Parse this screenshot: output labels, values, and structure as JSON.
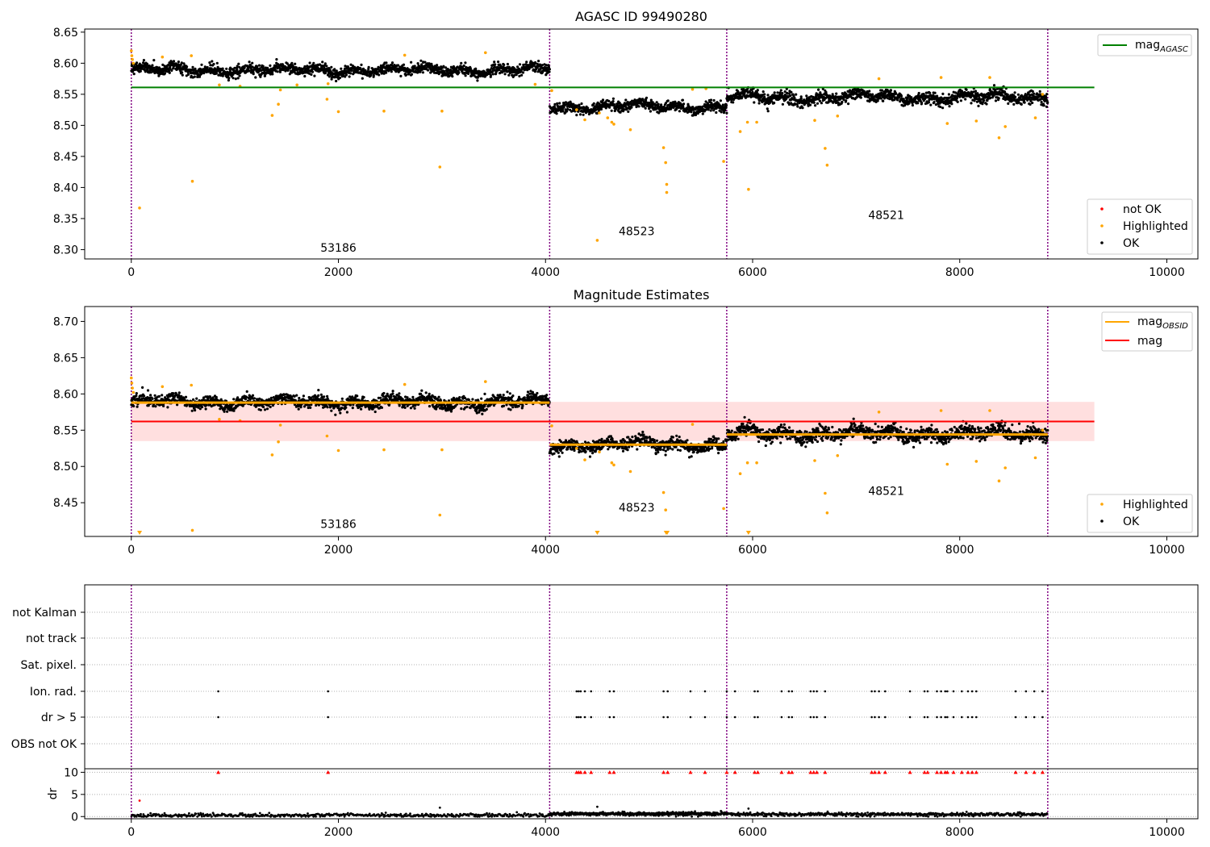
{
  "chart_data": [
    {
      "id": "agasc",
      "type": "scatter",
      "title": "AGASC ID 99490280",
      "xlim": [
        -450,
        10300
      ],
      "ylim": [
        8.285,
        8.655
      ],
      "xticks": [
        0,
        2000,
        4000,
        6000,
        8000,
        10000
      ],
      "xtick_labels": [
        "0",
        "2000",
        "4000",
        "6000",
        "8000",
        "10000"
      ],
      "yticks": [
        8.3,
        8.35,
        8.4,
        8.45,
        8.5,
        8.55,
        8.6,
        8.65
      ],
      "ytick_labels": [
        "8.30",
        "8.35",
        "8.40",
        "8.45",
        "8.50",
        "8.55",
        "8.60",
        "8.65"
      ],
      "obsid_boundaries": [
        0,
        4040,
        5750,
        8850
      ],
      "obsid_labels": [
        {
          "x": 2000,
          "y": 8.297,
          "text": "53186"
        },
        {
          "x": 4880,
          "y": 8.323,
          "text": "48523"
        },
        {
          "x": 7290,
          "y": 8.349,
          "text": "48521"
        }
      ],
      "hlines": [
        {
          "y": 8.561,
          "x_range": [
            0,
            9300
          ],
          "color": "#008000",
          "name": "mag_AGASC"
        }
      ],
      "segments": [
        {
          "x_range": [
            0,
            4040
          ],
          "level": 8.589,
          "spread": 0.006
        },
        {
          "x_range": [
            4040,
            5750
          ],
          "level": 8.53,
          "spread": 0.006
        },
        {
          "x_range": [
            5750,
            8850
          ],
          "level": 8.545,
          "spread": 0.007
        }
      ],
      "ok_points_per_segment": [
        1500,
        650,
        1150
      ],
      "highlighted_points": [
        [
          0,
          8.62
        ],
        [
          5,
          8.612
        ],
        [
          10,
          8.606
        ],
        [
          20,
          8.6
        ],
        [
          80,
          8.367
        ],
        [
          300,
          8.61
        ],
        [
          580,
          8.612
        ],
        [
          590,
          8.41
        ],
        [
          850,
          8.565
        ],
        [
          1050,
          8.563
        ],
        [
          1360,
          8.516
        ],
        [
          1420,
          8.534
        ],
        [
          1440,
          8.557
        ],
        [
          1600,
          8.565
        ],
        [
          1890,
          8.542
        ],
        [
          1900,
          8.567
        ],
        [
          2000,
          8.522
        ],
        [
          2440,
          8.523
        ],
        [
          2640,
          8.613
        ],
        [
          2980,
          8.433
        ],
        [
          3000,
          8.523
        ],
        [
          3420,
          8.617
        ],
        [
          3900,
          8.566
        ],
        [
          4060,
          8.556
        ],
        [
          4300,
          8.525
        ],
        [
          4380,
          8.509
        ],
        [
          4500,
          8.315
        ],
        [
          4520,
          8.52
        ],
        [
          4600,
          8.512
        ],
        [
          4640,
          8.505
        ],
        [
          4660,
          8.502
        ],
        [
          4820,
          8.493
        ],
        [
          5140,
          8.464
        ],
        [
          5160,
          8.44
        ],
        [
          5170,
          8.405
        ],
        [
          5170,
          8.392
        ],
        [
          5420,
          8.558
        ],
        [
          5550,
          8.559
        ],
        [
          5720,
          8.442
        ],
        [
          5880,
          8.49
        ],
        [
          5950,
          8.505
        ],
        [
          5960,
          8.397
        ],
        [
          6040,
          8.505
        ],
        [
          6600,
          8.508
        ],
        [
          6700,
          8.463
        ],
        [
          6720,
          8.436
        ],
        [
          6820,
          8.515
        ],
        [
          7220,
          8.575
        ],
        [
          7820,
          8.577
        ],
        [
          7880,
          8.503
        ],
        [
          8160,
          8.507
        ],
        [
          8290,
          8.577
        ],
        [
          8380,
          8.48
        ],
        [
          8440,
          8.498
        ],
        [
          8730,
          8.512
        ],
        [
          8800,
          8.55
        ]
      ],
      "legend_lines": [
        {
          "label_main": "mag",
          "label_sub": "AGASC",
          "color": "#008000"
        }
      ],
      "legend_points": [
        {
          "label": "not OK",
          "color": "#ff0000"
        },
        {
          "label": "Highlighted",
          "color": "#ffa500"
        },
        {
          "label": "OK",
          "color": "#000000"
        }
      ]
    },
    {
      "id": "estimates",
      "type": "scatter",
      "title": "Magnitude Estimates",
      "xlim": [
        -450,
        10300
      ],
      "ylim": [
        8.4035,
        8.7205
      ],
      "xticks": [
        0,
        2000,
        4000,
        6000,
        8000,
        10000
      ],
      "xtick_labels": [
        "0",
        "2000",
        "4000",
        "6000",
        "8000",
        "10000"
      ],
      "yticks": [
        8.45,
        8.5,
        8.55,
        8.6,
        8.65,
        8.7
      ],
      "ytick_labels": [
        "8.45",
        "8.50",
        "8.55",
        "8.60",
        "8.65",
        "8.70"
      ],
      "obsid_boundaries": [
        0,
        4040,
        5750,
        8850
      ],
      "obsid_labels": [
        {
          "x": 2000,
          "y": 8.415,
          "text": "53186"
        },
        {
          "x": 4880,
          "y": 8.438,
          "text": "48523"
        },
        {
          "x": 7290,
          "y": 8.461,
          "text": "48521"
        }
      ],
      "band": {
        "y_range": [
          8.535,
          8.589
        ],
        "x_range": [
          0,
          9300
        ],
        "color": "#ff8080"
      },
      "hlines": [
        {
          "y": 8.562,
          "x_range": [
            0,
            9300
          ],
          "color": "#ff0000",
          "name": "mag"
        }
      ],
      "obsid_mag_lines": [
        {
          "x_range": [
            0,
            4040
          ],
          "y": 8.588
        },
        {
          "x_range": [
            4040,
            5750
          ],
          "y": 8.53
        },
        {
          "x_range": [
            5750,
            8850
          ],
          "y": 8.544
        }
      ],
      "segments": [
        {
          "x_range": [
            0,
            4040
          ],
          "level": 8.589,
          "spread": 0.006
        },
        {
          "x_range": [
            4040,
            5750
          ],
          "level": 8.53,
          "spread": 0.006
        },
        {
          "x_range": [
            5750,
            8850
          ],
          "level": 8.545,
          "spread": 0.007
        }
      ],
      "ok_points_per_segment": [
        1500,
        650,
        1150
      ],
      "highlighted_points": [
        [
          0,
          8.622
        ],
        [
          5,
          8.615
        ],
        [
          10,
          8.608
        ],
        [
          20,
          8.602
        ],
        [
          300,
          8.61
        ],
        [
          580,
          8.612
        ],
        [
          590,
          8.412
        ],
        [
          850,
          8.565
        ],
        [
          1050,
          8.563
        ],
        [
          1360,
          8.516
        ],
        [
          1420,
          8.534
        ],
        [
          1440,
          8.557
        ],
        [
          1890,
          8.542
        ],
        [
          2000,
          8.522
        ],
        [
          2440,
          8.523
        ],
        [
          2640,
          8.613
        ],
        [
          2980,
          8.433
        ],
        [
          3000,
          8.523
        ],
        [
          3420,
          8.617
        ],
        [
          4060,
          8.556
        ],
        [
          4300,
          8.525
        ],
        [
          4380,
          8.509
        ],
        [
          4520,
          8.52
        ],
        [
          4640,
          8.505
        ],
        [
          4660,
          8.502
        ],
        [
          4820,
          8.493
        ],
        [
          5140,
          8.464
        ],
        [
          5160,
          8.44
        ],
        [
          5420,
          8.558
        ],
        [
          5720,
          8.442
        ],
        [
          5880,
          8.49
        ],
        [
          5950,
          8.505
        ],
        [
          6040,
          8.505
        ],
        [
          6600,
          8.508
        ],
        [
          6700,
          8.463
        ],
        [
          6720,
          8.436
        ],
        [
          6820,
          8.515
        ],
        [
          7220,
          8.575
        ],
        [
          7820,
          8.577
        ],
        [
          7880,
          8.503
        ],
        [
          8160,
          8.507
        ],
        [
          8290,
          8.577
        ],
        [
          8380,
          8.48
        ],
        [
          8440,
          8.498
        ],
        [
          8730,
          8.512
        ],
        [
          8800,
          8.55
        ]
      ],
      "offscale_markers_x": [
        80,
        4500,
        5165,
        5175,
        5960
      ],
      "legend_lines": [
        {
          "label_main": "mag",
          "label_sub": "OBSID",
          "color": "#ffa500"
        },
        {
          "label_main": "mag",
          "label_sub": "",
          "color": "#ff0000"
        }
      ],
      "legend_points": [
        {
          "label": "Highlighted",
          "color": "#ffa500"
        },
        {
          "label": "OK",
          "color": "#000000"
        }
      ]
    },
    {
      "id": "flags",
      "type": "scatter",
      "xlim": [
        -450,
        10300
      ],
      "category_labels": [
        "not Kalman",
        "not track",
        "Sat. pixel.",
        "Ion. rad.",
        "dr > 5",
        "OBS not OK"
      ],
      "obsid_boundaries": [
        0,
        4040,
        5750,
        8850
      ],
      "ion_rad_x": [
        840,
        1900,
        4300,
        4320,
        4340,
        4380,
        4440,
        4620,
        4660,
        5140,
        5180,
        5400,
        5540,
        5750,
        5830,
        6020,
        6050,
        6280,
        6350,
        6380,
        6560,
        6590,
        6620,
        6700,
        7150,
        7180,
        7220,
        7280,
        7520,
        7660,
        7690,
        7780,
        7820,
        7860,
        7880,
        7940,
        8020,
        8080,
        8120,
        8160,
        8540,
        8640,
        8720,
        8800
      ]
    },
    {
      "id": "dr",
      "type": "scatter",
      "xlim": [
        -450,
        10300
      ],
      "ylim": [
        -0.5,
        10.8
      ],
      "ylabel": "dr",
      "yticks": [
        0,
        5,
        10
      ],
      "ytick_labels": [
        "0",
        "5",
        "10"
      ],
      "xticks": [
        0,
        2000,
        4000,
        6000,
        8000,
        10000
      ],
      "xtick_labels": [
        "0",
        "2000",
        "4000",
        "6000",
        "8000",
        "10000"
      ],
      "obsid_boundaries": [
        0,
        4040,
        5750,
        8850
      ],
      "base_level_per_segment": [
        0.3,
        0.6,
        0.5
      ],
      "capped_value": 10,
      "extra_points": [
        [
          80,
          3.6
        ],
        [
          2980,
          2.0
        ],
        [
          4500,
          2.2
        ],
        [
          5960,
          1.8
        ]
      ]
    }
  ]
}
